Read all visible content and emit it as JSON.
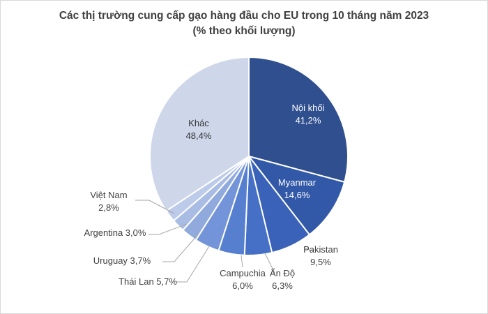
{
  "chart_data": {
    "type": "pie",
    "title": "Các thị trường cung cấp gạo hàng đầu cho EU trong 10 tháng năm 2023",
    "subtitle": "(% theo khối lượng)",
    "slices": [
      {
        "name": "Nội khối",
        "value": 41.2,
        "value_label": "41,2%",
        "color": "#2f4f8f"
      },
      {
        "name": "Myanmar",
        "value": 14.6,
        "value_label": "14,6%",
        "color": "#3258a8"
      },
      {
        "name": "Pakistan",
        "value": 9.5,
        "value_label": "9,5%",
        "color": "#3a62b8"
      },
      {
        "name": "Ấn Độ",
        "value": 6.3,
        "value_label": "6,3%",
        "color": "#4670c6"
      },
      {
        "name": "Campuchia",
        "value": 6.0,
        "value_label": "6,0%",
        "color": "#5680cf"
      },
      {
        "name": "Thái Lan",
        "value": 5.7,
        "value_label": "5,7%",
        "color": "#7394d8"
      },
      {
        "name": "Uruguay",
        "value": 3.7,
        "value_label": "3,7%",
        "color": "#90aade"
      },
      {
        "name": "Argentina",
        "value": 3.0,
        "value_label": "3,0%",
        "color": "#a9bce4"
      },
      {
        "name": "Việt Nam",
        "value": 2.8,
        "value_label": "2,8%",
        "color": "#bccbea"
      },
      {
        "name": "Khác",
        "value": 48.4,
        "value_label": "48,4%",
        "color": "#ced6ea"
      }
    ]
  }
}
